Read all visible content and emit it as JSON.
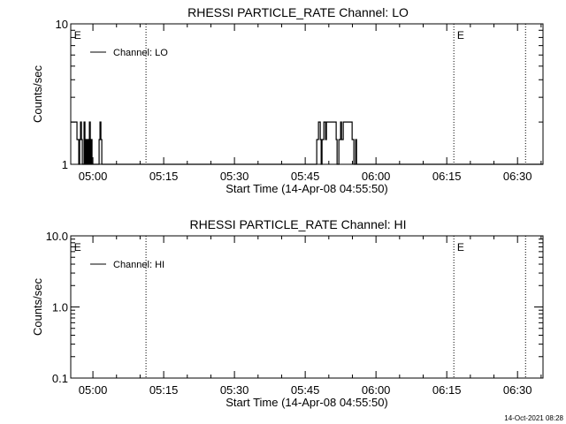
{
  "footer_timestamp": "14-Oct-2021 08:28",
  "chart_data": [
    {
      "type": "line",
      "title": "RHESSI PARTICLE_RATE Channel: LO",
      "xlabel": "Start Time (14-Apr-08 04:55:50)",
      "ylabel": "Counts/sec",
      "xunits": "minutes after 05:00",
      "xlim": [
        -4.7,
        95.4
      ],
      "ylim": [
        1,
        10
      ],
      "yscale": "log",
      "xticks": [
        0,
        15,
        30,
        45,
        60,
        75,
        90
      ],
      "xtick_labels": [
        "05:00",
        "05:15",
        "05:30",
        "05:45",
        "06:00",
        "06:15",
        "06:30"
      ],
      "yticks": [
        1,
        10
      ],
      "ytick_labels": [
        "1",
        "10"
      ],
      "legend": {
        "label": "Channel: LO",
        "position": "top-left"
      },
      "vlines": [
        11.25,
        76.5,
        91.7
      ],
      "annotations": [
        {
          "text": "E",
          "x": -4.0
        },
        {
          "text": "E",
          "x": 77.2
        }
      ],
      "series": [
        {
          "name": "Channel: LO",
          "step": true,
          "points": [
            [
              -4.69,
              2
            ],
            [
              -3.38,
              1.5
            ],
            [
              -3.0,
              1
            ],
            [
              -2.81,
              1.5
            ],
            [
              -2.63,
              2
            ],
            [
              -2.44,
              1.5
            ],
            [
              -2.25,
              1
            ],
            [
              -1.88,
              2
            ],
            [
              -1.69,
              1
            ],
            [
              -1.5,
              1.5
            ],
            [
              -1.31,
              1
            ],
            [
              -1.13,
              1.5
            ],
            [
              -0.94,
              1
            ],
            [
              -0.75,
              2
            ],
            [
              -0.56,
              1
            ],
            [
              -0.38,
              1.5
            ],
            [
              -0.19,
              1
            ],
            [
              1.31,
              1.5
            ],
            [
              1.5,
              2
            ],
            [
              1.69,
              1.5
            ],
            [
              1.88,
              1
            ],
            [
              47.44,
              1.5
            ],
            [
              47.81,
              2
            ],
            [
              48.19,
              1.5
            ],
            [
              48.38,
              1
            ],
            [
              48.56,
              1.5
            ],
            [
              48.94,
              2
            ],
            [
              49.31,
              1.5
            ],
            [
              49.5,
              2
            ],
            [
              51.56,
              1.5
            ],
            [
              51.75,
              1
            ],
            [
              52.13,
              1.5
            ],
            [
              52.5,
              2
            ],
            [
              52.69,
              1.5
            ],
            [
              53.06,
              2
            ],
            [
              54.94,
              1.5
            ],
            [
              55.31,
              1
            ],
            [
              55.69,
              1.5
            ],
            [
              55.88,
              1
            ]
          ]
        }
      ]
    },
    {
      "type": "line",
      "title": "RHESSI PARTICLE_RATE Channel: HI",
      "xlabel": "Start Time (14-Apr-08 04:55:50)",
      "ylabel": "Counts/sec",
      "xunits": "minutes after 05:00",
      "xlim": [
        -4.7,
        95.4
      ],
      "ylim": [
        0.1,
        10
      ],
      "yscale": "log",
      "xticks": [
        0,
        15,
        30,
        45,
        60,
        75,
        90
      ],
      "xtick_labels": [
        "05:00",
        "05:15",
        "05:30",
        "05:45",
        "06:00",
        "06:15",
        "06:30"
      ],
      "yticks": [
        0.1,
        1,
        10
      ],
      "ytick_labels": [
        "0.1",
        "1.0",
        "10.0"
      ],
      "legend": {
        "label": "Channel: HI",
        "position": "top-left"
      },
      "vlines": [
        11.25,
        76.5,
        91.7
      ],
      "annotations": [
        {
          "text": "E",
          "x": -4.0
        },
        {
          "text": "E",
          "x": 77.2
        }
      ],
      "series": [
        {
          "name": "Channel: HI",
          "step": true,
          "points": []
        }
      ]
    }
  ]
}
